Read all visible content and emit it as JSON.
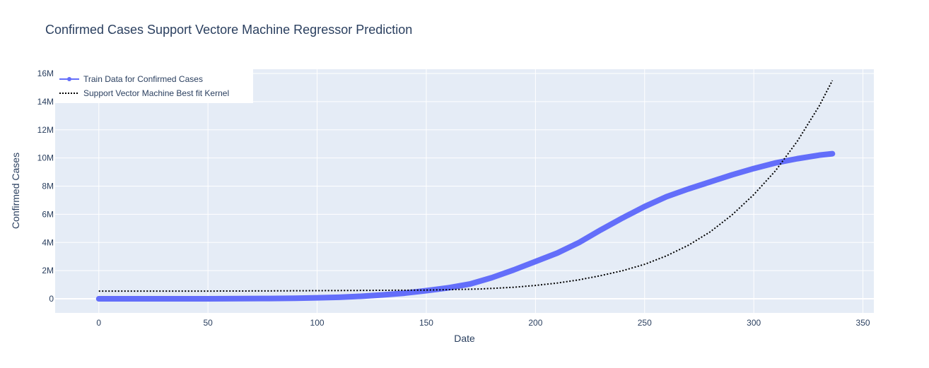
{
  "chart_data": {
    "type": "line",
    "title": "Confirmed Cases Support Vectore Machine Regressor Prediction",
    "xlabel": "Date",
    "ylabel": "Confirmed Cases",
    "xlim": [
      -20,
      355
    ],
    "ylim": [
      -1000000,
      16300000
    ],
    "x_ticks": [
      0,
      50,
      100,
      150,
      200,
      250,
      300,
      350
    ],
    "x_tick_labels": [
      "0",
      "50",
      "100",
      "150",
      "200",
      "250",
      "300",
      "350"
    ],
    "y_ticks": [
      0,
      2000000,
      4000000,
      6000000,
      8000000,
      10000000,
      12000000,
      14000000,
      16000000
    ],
    "y_tick_labels": [
      "0",
      "2M",
      "4M",
      "6M",
      "8M",
      "10M",
      "12M",
      "14M",
      "16M"
    ],
    "grid": true,
    "legend_position": "top-left",
    "plot_bg": "#e5ecf6",
    "series": [
      {
        "name": "Train Data for Confirmed Cases",
        "style": "line+markers",
        "color": "#636efa",
        "x": [
          0,
          25,
          50,
          75,
          90,
          100,
          110,
          120,
          130,
          140,
          150,
          160,
          170,
          180,
          190,
          200,
          210,
          220,
          230,
          240,
          250,
          260,
          270,
          280,
          290,
          300,
          310,
          320,
          330,
          336
        ],
        "y": [
          0,
          0,
          0,
          20000,
          40000,
          70000,
          110000,
          180000,
          280000,
          400000,
          580000,
          780000,
          1050000,
          1500000,
          2050000,
          2650000,
          3250000,
          4000000,
          4900000,
          5750000,
          6550000,
          7250000,
          7800000,
          8300000,
          8800000,
          9250000,
          9650000,
          9950000,
          10200000,
          10300000
        ]
      },
      {
        "name": "Support Vector Machine Best fit Kernel",
        "style": "dotted",
        "color": "#000000",
        "x": [
          0,
          25,
          50,
          75,
          100,
          125,
          150,
          175,
          190,
          200,
          210,
          220,
          230,
          240,
          250,
          260,
          270,
          280,
          290,
          300,
          310,
          320,
          330,
          336
        ],
        "y": [
          550000,
          550000,
          550000,
          560000,
          580000,
          600000,
          620000,
          700000,
          820000,
          950000,
          1120000,
          1350000,
          1650000,
          2000000,
          2450000,
          3050000,
          3800000,
          4750000,
          5950000,
          7400000,
          9100000,
          11200000,
          13700000,
          15500000
        ]
      }
    ]
  }
}
